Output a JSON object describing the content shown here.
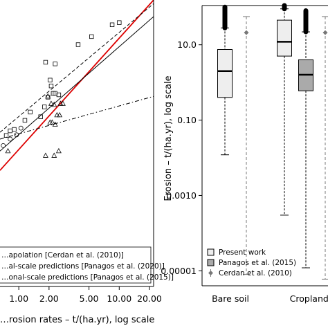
{
  "chart_data": [
    {
      "type": "scatter",
      "x_scale": "log",
      "y_scale": "log",
      "xlabel": "…rosion rates – t/(ha.yr), log scale",
      "xlim": [
        0.65,
        22
      ],
      "ylim": [
        0.003,
        120
      ],
      "x_ticks": [
        {
          "value": 1,
          "label": "1.00"
        },
        {
          "value": 2,
          "label": "2.00"
        },
        {
          "value": 5,
          "label": "5.00"
        },
        {
          "value": 10,
          "label": "10.00"
        },
        {
          "value": 20,
          "label": "20.00"
        }
      ],
      "legend": {
        "position": "bottom-left",
        "entries": [
          {
            "text": "…apolation [Cerdan et al. (2010)]"
          },
          {
            "text": "…al-scale predictions [Panagos et al. (2020)]"
          },
          {
            "text": "…onal-scale predictions [Panagos et al. (2015)]"
          }
        ]
      },
      "series": [
        {
          "name": "squares",
          "marker": "square",
          "x": [
            0.75,
            0.82,
            0.9,
            1.15,
            1.3,
            1.65,
            1.8,
            1.95,
            2.05,
            2.1,
            2.2,
            2.3,
            2.5,
            1.85,
            2.3,
            3.9,
            5.3,
            8.5,
            10.0
          ],
          "y": [
            0.8,
            0.95,
            1.0,
            1.4,
            1.9,
            1.6,
            2.3,
            3.3,
            6.2,
            5.0,
            3.8,
            3.8,
            3.6,
            12.0,
            11.3,
            23.0,
            31.0,
            48.0,
            52.0
          ]
        },
        {
          "name": "triangles",
          "marker": "triangle",
          "x": [
            0.78,
            2.05,
            2.15,
            2.3,
            2.4,
            2.55,
            2.1,
            2.25,
            2.6,
            2.75,
            1.95,
            1.85,
            2.25,
            2.5
          ],
          "y": [
            0.45,
            1.3,
            1.3,
            1.2,
            1.7,
            1.7,
            2.6,
            2.5,
            2.6,
            2.6,
            3.4,
            0.38,
            0.38,
            0.45
          ]
        },
        {
          "name": "circles",
          "marker": "circle",
          "x": [
            0.7,
            0.82,
            0.95,
            1.05
          ],
          "y": [
            0.55,
            0.7,
            0.82,
            1.05
          ]
        }
      ],
      "lines": [
        {
          "name": "red",
          "color": "#dd0000",
          "style": "solid",
          "x": [
            0.65,
            22
          ],
          "y": [
            0.22,
            120
          ]
        },
        {
          "name": "black-solid",
          "color": "#000000",
          "style": "solid",
          "x": [
            0.65,
            22
          ],
          "y": [
            0.45,
            65
          ]
        },
        {
          "name": "dashed",
          "color": "#000000",
          "style": "dashed",
          "x": [
            0.65,
            22
          ],
          "y": [
            0.9,
            105
          ]
        },
        {
          "name": "dash-dot",
          "color": "#000000",
          "style": "dashdot",
          "x": [
            0.65,
            22
          ],
          "y": [
            0.7,
            3.4
          ]
        }
      ]
    },
    {
      "type": "box",
      "ylabel": "Erosion – t/(ha.yr), log scale",
      "y_scale": "log",
      "ylim": [
        4e-06,
        110
      ],
      "y_ticks": [
        {
          "value": 1e-05,
          "label": "0.00001"
        },
        {
          "value": 0.001,
          "label": "0.0010"
        },
        {
          "value": 0.1,
          "label": "0.10"
        },
        {
          "value": 10,
          "label": "10.0"
        }
      ],
      "categories": [
        "Bare soil",
        "Croplands"
      ],
      "legend": {
        "position": "bottom-left",
        "entries": [
          {
            "text": "Present work",
            "fill": "#eeeeee",
            "marker": "box"
          },
          {
            "text": "Panagos et al. (2015)",
            "fill": "#aaaaaa",
            "marker": "box"
          },
          {
            "text": "Cerdan et al. (2010)",
            "fill": "#777777",
            "marker": "point"
          }
        ]
      },
      "boxes": [
        {
          "category": "Bare soil",
          "series": "Present work",
          "fill": "#eeeeee",
          "whisker_low": 0.012,
          "q1": 0.4,
          "median": 2.0,
          "q3": 7.5,
          "whisker_high": 28,
          "outliers_to": 100
        },
        {
          "category": "Croplands",
          "series": "Present work",
          "fill": "#eeeeee",
          "whisker_low": 0.0003,
          "q1": 5.0,
          "median": 12.0,
          "q3": 45,
          "whisker_high": 90,
          "outliers_to": 110
        },
        {
          "category": "Croplands",
          "series": "Panagos et al. (2015)",
          "fill": "#aaaaaa",
          "whisker_low": 1.2e-05,
          "q1": 0.6,
          "median": 1.6,
          "q3": 4.0,
          "whisker_high": 22,
          "outliers_to": 80
        }
      ],
      "ranges": [
        {
          "category": "Bare soil",
          "series": "Cerdan et al. (2010)",
          "color": "#777777",
          "low": 8e-06,
          "point": 21,
          "high": 56
        },
        {
          "category": "Croplands",
          "series": "Cerdan et al. (2010)",
          "color": "#777777",
          "low": 6e-06,
          "point": 21,
          "high": 56
        }
      ]
    }
  ]
}
